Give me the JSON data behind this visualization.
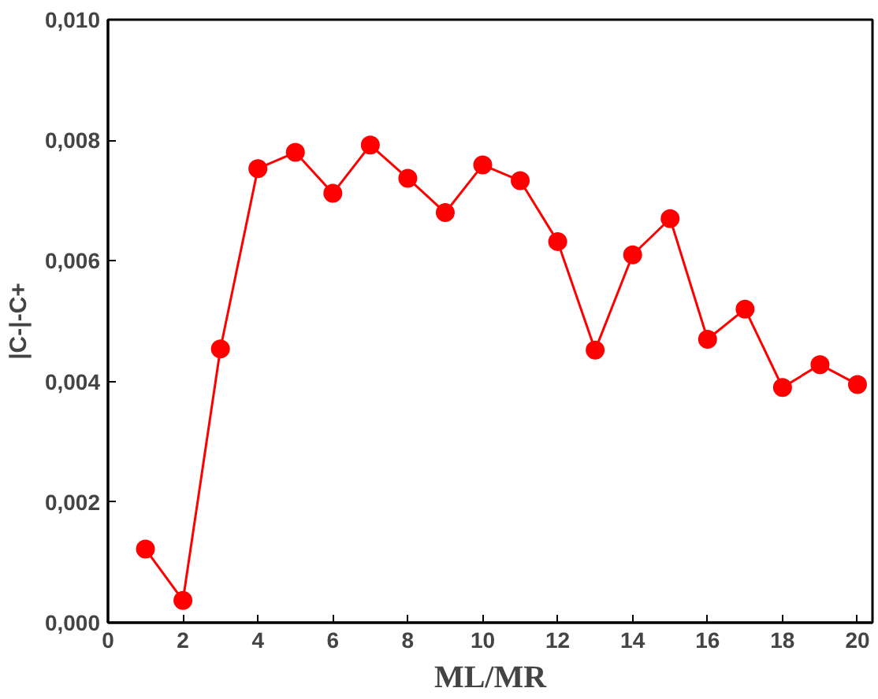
{
  "chart_data": {
    "type": "line",
    "xlabel": "ML/MR",
    "ylabel": "|C-|-C+",
    "x": [
      1,
      2,
      3,
      4,
      5,
      6,
      7,
      8,
      9,
      10,
      11,
      12,
      13,
      14,
      15,
      16,
      17,
      18,
      19,
      20
    ],
    "series": [
      {
        "color": "#ff0000",
        "values": [
          0.00122,
          0.00037,
          0.00454,
          0.00753,
          0.0078,
          0.00712,
          0.00792,
          0.00737,
          0.0068,
          0.00759,
          0.00733,
          0.00632,
          0.00452,
          0.0061,
          0.0067,
          0.0047,
          0.0052,
          0.0039,
          0.00428,
          0.00395
        ]
      }
    ],
    "xlim": [
      0,
      20.4
    ],
    "ylim": [
      0,
      0.01
    ],
    "xticks": [
      0,
      2,
      4,
      6,
      8,
      10,
      12,
      14,
      16,
      18,
      20
    ],
    "yticks": [
      {
        "value": 0,
        "label": "0,000"
      },
      {
        "value": 0.002,
        "label": "0,002"
      },
      {
        "value": 0.004,
        "label": "0,004"
      },
      {
        "value": 0.006,
        "label": "0,006"
      },
      {
        "value": 0.008,
        "label": "0,008"
      },
      {
        "value": 0.01,
        "label": "0,010"
      }
    ],
    "marker": "circle",
    "line_style": "solid",
    "grid": false
  }
}
